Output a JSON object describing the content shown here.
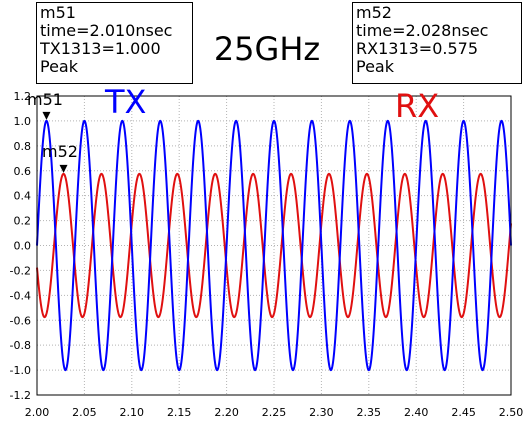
{
  "chart_data": {
    "type": "line",
    "title": "25GHz",
    "xlabel": "",
    "ylabel": "",
    "xlim": [
      2.0,
      2.5
    ],
    "ylim": [
      -1.2,
      1.2
    ],
    "x_ticks": [
      "2.00",
      "2.05",
      "2.10",
      "2.15",
      "2.20",
      "2.25",
      "2.30",
      "2.35",
      "2.40",
      "2.45",
      "2.50"
    ],
    "y_ticks": [
      "1.2",
      "1.0",
      "0.8",
      "0.6",
      "0.4",
      "0.2",
      "0.0",
      "-0.2",
      "-0.4",
      "-0.6",
      "-0.8",
      "-1.0",
      "-1.2"
    ],
    "grid": true,
    "frequency_ghz": 25,
    "series": [
      {
        "name": "TX",
        "color": "#0000ff",
        "amplitude": 1.0,
        "peak_time": 2.01
      },
      {
        "name": "RX",
        "color": "#e01010",
        "amplitude": 0.575,
        "peak_time": 2.028
      }
    ],
    "markers": [
      {
        "name": "m51",
        "time": "time=2.010nsec",
        "value": "TX1313=1.000",
        "kind": "Peak",
        "x": 2.01,
        "y": 1.0
      },
      {
        "name": "m52",
        "time": "time=2.028nsec",
        "value": "RX1313=0.575",
        "kind": "Peak",
        "x": 2.028,
        "y": 0.575
      }
    ]
  }
}
